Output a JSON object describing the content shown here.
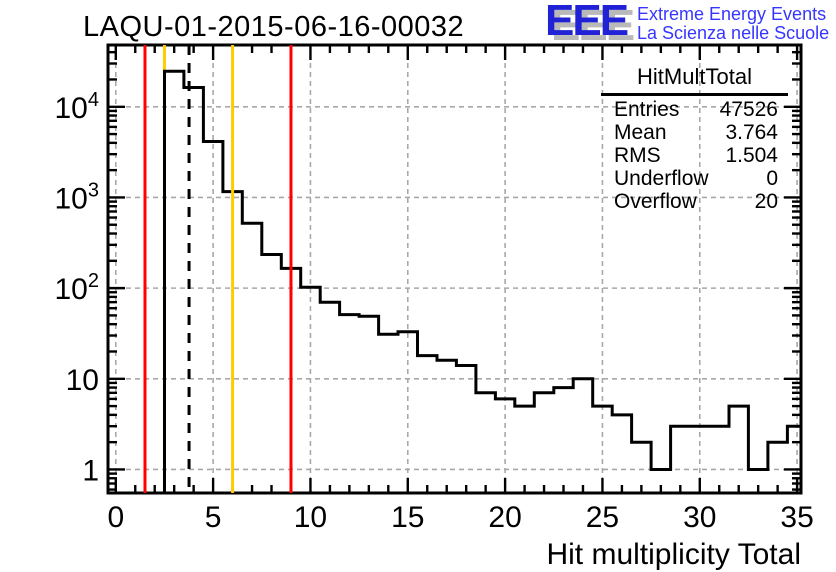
{
  "page": {
    "title": "LAQU-01-2015-06-16-00032"
  },
  "logo": {
    "acronym": "EEE",
    "line1": "Extreme Energy Events",
    "line2": "La Scienza nelle Scuole",
    "acronym_color": "#2121d6",
    "shadow_color": "#b9b9b9",
    "text_color": "#3636ff"
  },
  "stats": {
    "title": "HitMultTotal",
    "rows": [
      {
        "label": "Entries",
        "value": "47526"
      },
      {
        "label": "Mean",
        "value": "3.764"
      },
      {
        "label": "RMS",
        "value": "1.504"
      },
      {
        "label": "Underflow",
        "value": "0"
      },
      {
        "label": "Overflow",
        "value": "20"
      }
    ]
  },
  "chart_data": {
    "type": "bar",
    "title": "LAQU-01-2015-06-16-00032",
    "histogram_name": "HitMultTotal",
    "xlabel": "Hit multiplicity Total",
    "ylabel": "",
    "y_scale": "log",
    "grid": true,
    "bin_width": 1,
    "bin_centers": [
      0,
      1,
      2,
      3,
      4,
      5,
      6,
      7,
      8,
      9,
      10,
      11,
      12,
      13,
      14,
      15,
      16,
      17,
      18,
      19,
      20,
      21,
      22,
      23,
      24,
      25,
      26,
      27,
      28,
      29,
      30,
      31,
      32,
      33,
      34,
      35
    ],
    "values": [
      0,
      0,
      0,
      24600,
      16300,
      4140,
      1160,
      520,
      235,
      165,
      102,
      70,
      51,
      49,
      31,
      33,
      18,
      16,
      14,
      7,
      6,
      5,
      7,
      8,
      10,
      5,
      4,
      2,
      1,
      3,
      3,
      3,
      5,
      1,
      2,
      3
    ],
    "x_ticks": [
      0,
      5,
      10,
      15,
      20,
      25,
      30,
      35
    ],
    "y_ticks": [
      {
        "v": 1,
        "label": "1",
        "exp": ""
      },
      {
        "v": 10,
        "label": "10",
        "exp": ""
      },
      {
        "v": 100,
        "label": "10",
        "exp": "2"
      },
      {
        "v": 1000,
        "label": "10",
        "exp": "3"
      },
      {
        "v": 10000,
        "label": "10",
        "exp": "4"
      }
    ],
    "xlim": [
      -0.4,
      35.2
    ],
    "ylim": [
      0.55,
      48000
    ],
    "line_color": "#000000",
    "grid_color": "#a8a8a8",
    "marker_lines": [
      {
        "x": 1.5,
        "color": "#ff0000",
        "style": "solid",
        "layer": "above"
      },
      {
        "x": 2.5,
        "color": "#ffcc00",
        "style": "solid",
        "layer": "below"
      },
      {
        "x": 3.764,
        "color": "#000000",
        "style": "dashed",
        "layer": "above"
      },
      {
        "x": 6,
        "color": "#ffcc00",
        "style": "solid",
        "layer": "above"
      },
      {
        "x": 9,
        "color": "#ff0000",
        "style": "solid",
        "layer": "above"
      }
    ]
  }
}
